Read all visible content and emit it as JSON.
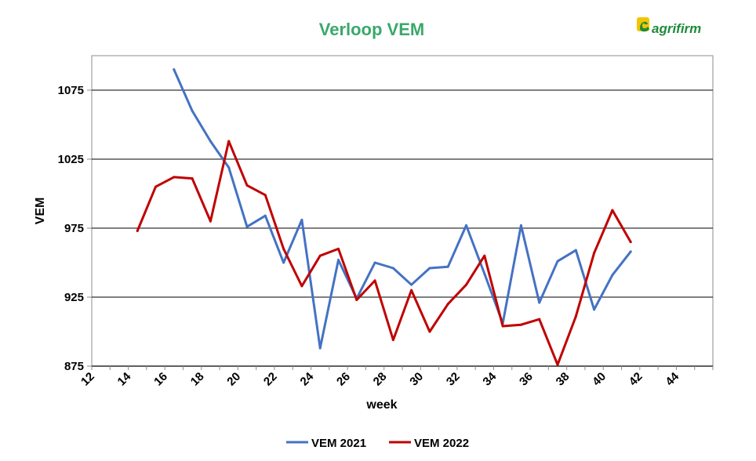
{
  "logo": {
    "text": "agrifirm",
    "icon": "agrifirm-logo-icon",
    "color": "#1f8a3b",
    "accent": "#f2c500"
  },
  "chart_data": {
    "type": "line",
    "title": "Verloop VEM",
    "title_color": "#3aa86a",
    "xlabel": "week",
    "ylabel": "VEM",
    "xlim": [
      12,
      46
    ],
    "ylim": [
      875,
      1100
    ],
    "xticks": [
      12,
      14,
      16,
      18,
      20,
      22,
      24,
      26,
      28,
      30,
      32,
      34,
      36,
      38,
      40,
      42,
      44
    ],
    "yticks": [
      875,
      925,
      975,
      1025,
      1075
    ],
    "grid": "horizontal",
    "legend_position": "bottom",
    "series": [
      {
        "name": "VEM 2021",
        "color": "#4472c4",
        "x": [
          16.5,
          17.5,
          18.5,
          19.5,
          20.5,
          21.5,
          22.5,
          23.5,
          24.5,
          25.5,
          26.5,
          27.5,
          28.5,
          29.5,
          30.5,
          31.5,
          32.5,
          33.5,
          34.5,
          35.5,
          36.5,
          37.5,
          38.5,
          39.5,
          40.5,
          41.5
        ],
        "values": [
          1090,
          1060,
          1038,
          1019,
          976,
          984,
          950,
          981,
          888,
          952,
          924,
          950,
          946,
          934,
          946,
          947,
          977,
          942,
          906,
          977,
          921,
          951,
          959,
          916,
          941,
          958
        ]
      },
      {
        "name": "VEM 2022",
        "color": "#c00000",
        "x": [
          14.5,
          15.5,
          16.5,
          17.5,
          18.5,
          19.5,
          20.5,
          21.5,
          22.5,
          23.5,
          24.5,
          25.5,
          26.5,
          27.5,
          28.5,
          29.5,
          30.5,
          31.5,
          32.5,
          33.5,
          34.5,
          35.5,
          36.5,
          37.5,
          38.5,
          39.5,
          40.5,
          41.5
        ],
        "values": [
          973,
          1005,
          1012,
          1011,
          980,
          1038,
          1006,
          999,
          960,
          933,
          955,
          960,
          923,
          937,
          894,
          930,
          900,
          920,
          934,
          955,
          904,
          905,
          909,
          876,
          911,
          957,
          988,
          965
        ]
      }
    ]
  }
}
